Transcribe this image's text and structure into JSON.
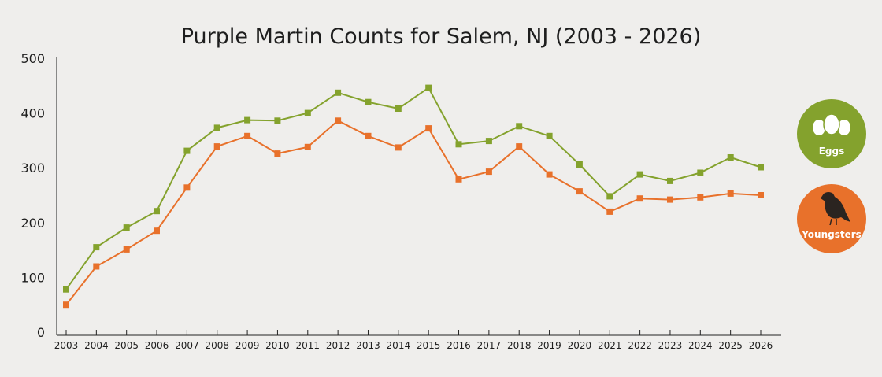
{
  "chart_data": {
    "type": "line",
    "title": "Purple Martin Counts for Salem, NJ (2003 - 2026)",
    "x": [
      "2003",
      "2004",
      "2005",
      "2006",
      "2007",
      "2008",
      "2009",
      "2010",
      "2011",
      "2012",
      "2013",
      "2014",
      "2015",
      "2016",
      "2017",
      "2018",
      "2019",
      "2020",
      "2021",
      "2022",
      "2023",
      "2024",
      "2025",
      "2026"
    ],
    "yticks": [
      "0",
      "100",
      "200",
      "300",
      "400",
      "500"
    ],
    "ylim": [
      0,
      500
    ],
    "grid": false,
    "legend_placement": "right",
    "series": [
      {
        "name": "Eggs",
        "color": "#84a22d",
        "icon": "eggs-icon",
        "values": [
          78,
          155,
          191,
          221,
          331,
          373,
          387,
          386,
          400,
          437,
          420,
          408,
          446,
          343,
          349,
          376,
          358,
          306,
          248,
          288,
          276,
          291,
          319,
          301
        ]
      },
      {
        "name": "Youngsters",
        "color": "#e8712b",
        "icon": "bird-icon",
        "values": [
          50,
          120,
          151,
          185,
          264,
          339,
          358,
          326,
          338,
          386,
          358,
          337,
          372,
          279,
          293,
          339,
          288,
          257,
          220,
          244,
          242,
          246,
          253,
          250
        ]
      }
    ]
  }
}
